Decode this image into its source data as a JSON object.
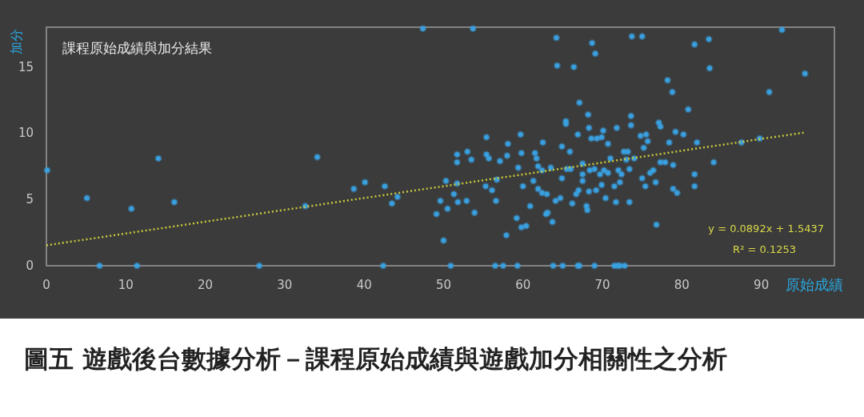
{
  "chart_data": {
    "type": "scatter",
    "title": "課程原始成績與加分結果",
    "xlabel": "原始成績",
    "ylabel": "加分",
    "annotations": [
      "y = 0.0892x + 1.5437",
      "R² = 0.1253",
      "圖五 遊戲後台數據分析－課程原始成績與遊戲加分相關性之分析"
    ],
    "xlim": [
      0,
      99.2
    ],
    "ylim": [
      0,
      18
    ],
    "xticks": [
      0,
      10,
      20,
      30,
      40,
      50,
      60,
      70,
      80,
      90
    ],
    "yticks": [
      0,
      5,
      10,
      15
    ],
    "grid": false,
    "series": [
      {
        "marker": "circle",
        "color": "#3aa0e0",
        "x": [
          0.1,
          5.1,
          10.7,
          14.1,
          16.1,
          6.7,
          11.4,
          26.8,
          34.1,
          32.6,
          38.7,
          40.1,
          42.6,
          43.5,
          44.2,
          42.4,
          50.3,
          51.7,
          49.6,
          51.3,
          51.8,
          52.9,
          50.5,
          49.1,
          53.9,
          50.0,
          55.3,
          56.1,
          56.6,
          56.7,
          59.4,
          60.0,
          59.2,
          59.8,
          60.4,
          57.9,
          50.9,
          56.5,
          57.5,
          59.3,
          51.7,
          51.7,
          53.5,
          55.4,
          55.7,
          57.1,
          58.0,
          59.8,
          47.4,
          53.7,
          55.4,
          59.7,
          58.1,
          53.0,
          64.2,
          68.7,
          69.1,
          73.7,
          75.0,
          81.6,
          83.4,
          64.3,
          66.4,
          83.5,
          78.2,
          78.8,
          67.1,
          80.8,
          68.2,
          73.6,
          65.4,
          65.4,
          73.6,
          77.1,
          77.3,
          68.3,
          71.8,
          62.5,
          66.9,
          70.1,
          68.6,
          69.3,
          69.9,
          74.8,
          75.5,
          75.7,
          79.2,
          80.2,
          78.4,
          81.9,
          87.5,
          64.9,
          65.9,
          70.7,
          75.2,
          72.7,
          73.2,
          61.5,
          61.7,
          92.6,
          95.5,
          91.0,
          89.8,
          61.9,
          62.4,
          63.5,
          64.9,
          65.5,
          66.0,
          67.5,
          67.5,
          68.4,
          69.0,
          69.7,
          70.2,
          70.7,
          71.0,
          72.0,
          72.4,
          73.4,
          73.0,
          74.0,
          76.0,
          76.4,
          77.3,
          77.9,
          78.9,
          84.0,
          81.6,
          81.6,
          75.0,
          75.4,
          76.7,
          78.9,
          79.4,
          61.3,
          61.9,
          62.4,
          63.0,
          64.1,
          64.7,
          63.1,
          62.9,
          63.7,
          60.9,
          66.2,
          66.7,
          67.0,
          67.5,
          68.3,
          69.2,
          68.0,
          68.1,
          69.9,
          70.4,
          71.5,
          72.2,
          71.7,
          73.4,
          76.8,
          63.8,
          65.0,
          66.9,
          67.1,
          69.0,
          71.5,
          71.9,
          72.2,
          72.8
        ],
        "values": [
          7.2,
          5.1,
          4.3,
          8.1,
          4.8,
          0,
          0,
          0,
          8.2,
          4.5,
          5.8,
          6.3,
          6.0,
          4.7,
          5.2,
          0,
          6.4,
          6.2,
          4.9,
          5.4,
          4.8,
          4.9,
          4.3,
          3.9,
          4.0,
          1.9,
          6.0,
          5.7,
          4.9,
          6.5,
          7.4,
          6.0,
          3.6,
          2.9,
          3.0,
          2.3,
          0,
          0,
          0,
          0,
          8.4,
          7.8,
          8.0,
          8.4,
          8.1,
          7.9,
          8.3,
          8.5,
          17.9,
          17.9,
          9.7,
          9.9,
          9.2,
          8.6,
          17.2,
          16.8,
          16.0,
          17.3,
          17.3,
          16.7,
          17.1,
          15.1,
          15.0,
          14.9,
          14.0,
          13.1,
          12.3,
          11.8,
          11.4,
          11.3,
          10.9,
          10.7,
          10.6,
          10.8,
          10.5,
          10.4,
          10.4,
          9.3,
          9.9,
          10.2,
          9.6,
          9.6,
          9.7,
          9.8,
          9.9,
          9.4,
          10.1,
          9.9,
          9.3,
          9.3,
          9.3,
          9.0,
          8.6,
          9.2,
          8.9,
          8.6,
          8.6,
          8.5,
          8.1,
          17.8,
          14.5,
          13.1,
          9.6,
          7.5,
          7.2,
          7.4,
          6.6,
          7.3,
          7.3,
          7.7,
          6.9,
          7.2,
          7.3,
          6.9,
          7.2,
          7.0,
          8.1,
          7.2,
          6.9,
          7.3,
          8.0,
          8.1,
          7.0,
          7.2,
          7.8,
          7.8,
          7.6,
          7.8,
          6.9,
          6.0,
          6.6,
          6.0,
          6.3,
          5.8,
          5.5,
          6.4,
          5.8,
          5.5,
          5.4,
          4.9,
          5.1,
          4.0,
          3.9,
          3.3,
          4.5,
          4.7,
          5.4,
          5.7,
          6.4,
          5.6,
          5.7,
          4.5,
          4.2,
          6.1,
          5.1,
          6.0,
          6.3,
          4.8,
          4.8,
          3.1,
          0,
          0,
          0,
          0,
          0,
          0,
          0,
          0,
          0
        ]
      },
      {
        "type": "line",
        "color": "#c8c83c",
        "line_style": "dotted",
        "x": [
          0,
          95.5
        ],
        "values": [
          1.54,
          10.06
        ]
      }
    ]
  }
}
